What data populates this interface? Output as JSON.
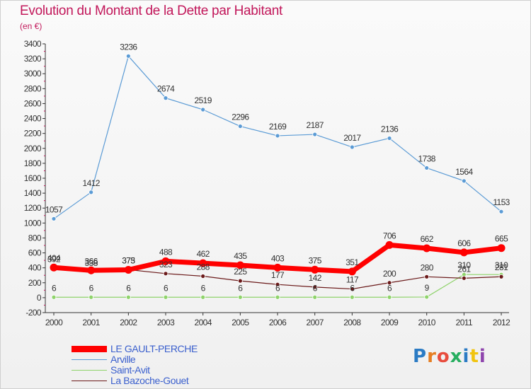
{
  "header": {
    "title": "Evolution du Montant de la Dette par Habitant",
    "subtitle": "(en €)"
  },
  "brand": {
    "name": "Proxiti",
    "letter_colors": [
      "#2b7bc4",
      "#e67e22",
      "#e84c3d",
      "#27ae60",
      "#2b7bc4",
      "#f1c40f",
      "#8e44ad"
    ]
  },
  "chart_data": {
    "type": "line",
    "title": "Evolution du Montant de la Dette par Habitant",
    "subtitle": "(en €)",
    "x": [
      2000,
      2001,
      2002,
      2003,
      2004,
      2005,
      2006,
      2007,
      2008,
      2009,
      2010,
      2011,
      2012
    ],
    "x_tick_labels": [
      "2000",
      "2001",
      "2002",
      "2003",
      "2004",
      "2005",
      "2006",
      "2007",
      "2008",
      "2009",
      "2010",
      "2011",
      "2012"
    ],
    "ylim": [
      -200,
      3400
    ],
    "y_ticks": [
      -200,
      0,
      200,
      400,
      600,
      800,
      1000,
      1200,
      1400,
      1600,
      1800,
      2000,
      2200,
      2400,
      2600,
      2800,
      3000,
      3200,
      3400
    ],
    "grid": false,
    "legend_position": "bottom-left",
    "series": [
      {
        "name": "LE GAULT-PERCHE",
        "color": "#ff0000",
        "style": "thick",
        "values": [
          404,
          366,
          373,
          488,
          462,
          435,
          403,
          375,
          351,
          706,
          662,
          606,
          665
        ],
        "labels": [
          "404",
          "366",
          "373",
          "488",
          "462",
          "435",
          "403",
          "375",
          "351",
          "706",
          "662",
          "606",
          "665"
        ]
      },
      {
        "name": "Arville",
        "color": "#5b9bd5",
        "style": "thin",
        "values": [
          1057,
          1412,
          3236,
          2674,
          2519,
          2296,
          2169,
          2187,
          2017,
          2136,
          1738,
          1564,
          1153
        ],
        "labels": [
          "1057",
          "1412",
          "3236",
          "2674",
          "2519",
          "2296",
          "2169",
          "2187",
          "2017",
          "2136",
          "1738",
          "1564",
          "1153"
        ]
      },
      {
        "name": "Saint-Avit",
        "color": "#8fd36b",
        "style": "thin",
        "values": [
          6,
          6,
          6,
          6,
          6,
          6,
          6,
          6,
          6,
          6,
          9,
          310,
          310
        ],
        "labels": [
          "6",
          "6",
          "6",
          "6",
          "6",
          "6",
          "6",
          "6",
          "6",
          "6",
          "9",
          "310",
          "310"
        ]
      },
      {
        "name": "La Bazoche-Gouet",
        "color": "#6b1a1a",
        "style": "thin",
        "values": [
          392,
          338,
          375,
          323,
          288,
          225,
          177,
          142,
          117,
          200,
          280,
          261,
          281
        ],
        "labels": [
          "392",
          "338",
          "375",
          "323",
          "288",
          "225",
          "177",
          "142",
          "117",
          "200",
          "280",
          "261",
          "281"
        ]
      }
    ]
  }
}
